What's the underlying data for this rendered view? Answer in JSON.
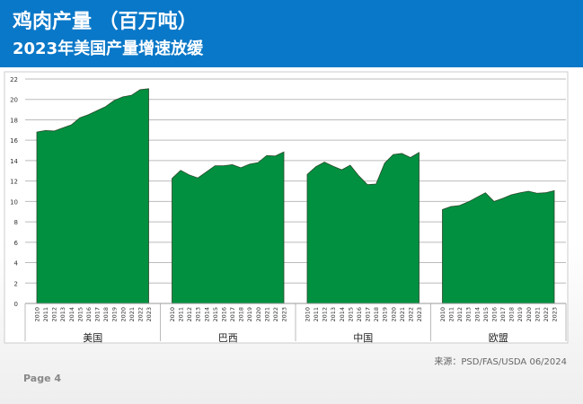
{
  "header": {
    "title": "鸡肉产量 （百万吨）",
    "subtitle": "2023年美国产量增速放缓"
  },
  "footer": {
    "source": "来源：PSD/FAS/USDA 06/2024",
    "page": "Page 4"
  },
  "colors": {
    "header": "#0a78c8",
    "fill": "#009040",
    "stroke": "#2a4a2a"
  },
  "chart_data": {
    "type": "area",
    "title": "鸡肉产量 （百万吨）",
    "ylim": [
      0,
      22
    ],
    "yticks": [
      0,
      2,
      4,
      6,
      8,
      10,
      12,
      14,
      16,
      18,
      20,
      22
    ],
    "years": [
      "2010",
      "2011",
      "2012",
      "2013",
      "2014",
      "2015",
      "2016",
      "2017",
      "2018",
      "2019",
      "2020",
      "2021",
      "2022",
      "2023"
    ],
    "series": [
      {
        "name": "美国",
        "values": [
          16.8,
          16.95,
          16.9,
          17.2,
          17.5,
          18.2,
          18.5,
          18.9,
          19.3,
          19.9,
          20.25,
          20.4,
          20.95,
          21.05
        ]
      },
      {
        "name": "巴西",
        "values": [
          12.25,
          13.05,
          12.6,
          12.3,
          12.9,
          13.5,
          13.5,
          13.6,
          13.3,
          13.65,
          13.8,
          14.5,
          14.45,
          14.85
        ]
      },
      {
        "name": "中国",
        "values": [
          12.65,
          13.4,
          13.85,
          13.45,
          13.1,
          13.55,
          12.5,
          11.65,
          11.7,
          13.75,
          14.6,
          14.7,
          14.3,
          14.8
        ]
      },
      {
        "name": "欧盟",
        "values": [
          9.2,
          9.5,
          9.6,
          9.95,
          10.4,
          10.85,
          10.0,
          10.3,
          10.65,
          10.85,
          11.0,
          10.8,
          10.85,
          11.05
        ]
      }
    ]
  }
}
